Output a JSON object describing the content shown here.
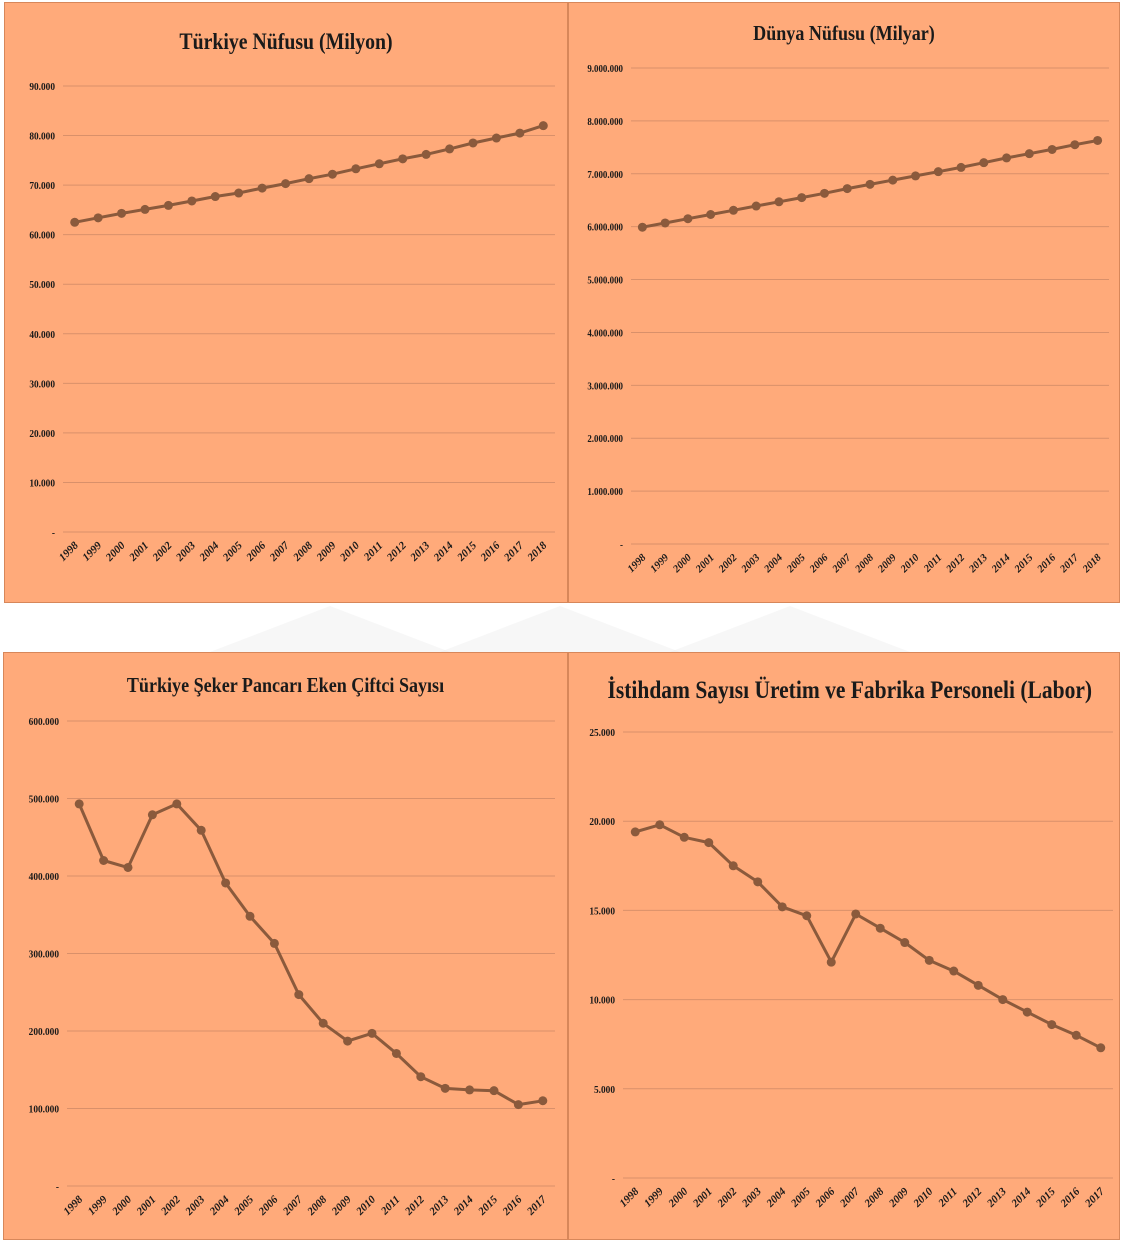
{
  "colors": {
    "panel": "#FFAA7A",
    "line": "#8B5A3C",
    "marker": "#8B5A3C",
    "grid": "#D9906A",
    "text": "#1a1a1a"
  },
  "chart_data": [
    {
      "type": "line",
      "title": "Türkiye Nüfusu (Milyon)",
      "categories": [
        "1998",
        "1999",
        "2000",
        "2001",
        "2002",
        "2003",
        "2004",
        "2005",
        "2006",
        "2007",
        "2008",
        "2009",
        "2010",
        "2011",
        "2012",
        "2013",
        "2014",
        "2015",
        "2016",
        "2017",
        "2018"
      ],
      "values": [
        62500,
        63400,
        64300,
        65100,
        65900,
        66800,
        67700,
        68400,
        69400,
        70300,
        71300,
        72200,
        73300,
        74300,
        75300,
        76200,
        77300,
        78500,
        79500,
        80500,
        82000
      ],
      "yticks": [
        0,
        10000,
        20000,
        30000,
        40000,
        50000,
        60000,
        70000,
        80000,
        90000
      ],
      "ytick_labels": [
        "-",
        "10.000",
        "20.000",
        "30.000",
        "40.000",
        "50.000",
        "60.000",
        "70.000",
        "80.000",
        "90.000"
      ],
      "ylim": [
        0,
        90000
      ]
    },
    {
      "type": "line",
      "title": "Dünya Nüfusu (Milyar)",
      "categories": [
        "1998",
        "1999",
        "2000",
        "2001",
        "2002",
        "2003",
        "2004",
        "2005",
        "2006",
        "2007",
        "2008",
        "2009",
        "2010",
        "2011",
        "2012",
        "2013",
        "2014",
        "2015",
        "2016",
        "2017",
        "2018"
      ],
      "values": [
        5990000,
        6070000,
        6150000,
        6230000,
        6310000,
        6390000,
        6470000,
        6550000,
        6630000,
        6720000,
        6800000,
        6880000,
        6960000,
        7040000,
        7120000,
        7210000,
        7300000,
        7380000,
        7460000,
        7550000,
        7630000
      ],
      "yticks": [
        0,
        1000000,
        2000000,
        3000000,
        4000000,
        5000000,
        6000000,
        7000000,
        8000000,
        9000000
      ],
      "ytick_labels": [
        "-",
        "1.000.000",
        "2.000.000",
        "3.000.000",
        "4.000.000",
        "5.000.000",
        "6.000.000",
        "7.000.000",
        "8.000.000",
        "9.000.000"
      ],
      "ylim": [
        0,
        9000000
      ]
    },
    {
      "type": "line",
      "title": "Türkiye  Şeker Pancarı Eken Çiftci Sayısı",
      "categories": [
        "1998",
        "1999",
        "2000",
        "2001",
        "2002",
        "2003",
        "2004",
        "2005",
        "2006",
        "2007",
        "2008",
        "2009",
        "2010",
        "2011",
        "2012",
        "2013",
        "2014",
        "2015",
        "2016",
        "2017"
      ],
      "values": [
        493000,
        420000,
        411000,
        479000,
        493000,
        459000,
        391000,
        348000,
        313000,
        247000,
        210000,
        187000,
        197000,
        171000,
        141000,
        126000,
        124000,
        123000,
        105000,
        110000
      ],
      "yticks": [
        0,
        100000,
        200000,
        300000,
        400000,
        500000,
        600000
      ],
      "ytick_labels": [
        "-",
        "100.000",
        "200.000",
        "300.000",
        "400.000",
        "500.000",
        "600.000"
      ],
      "ylim": [
        0,
        600000
      ]
    },
    {
      "type": "line",
      "title": "İstihdam Sayısı Üretim ve Fabrika Personeli (Labor)",
      "categories": [
        "1998",
        "1999",
        "2000",
        "2001",
        "2002",
        "2003",
        "2004",
        "2005",
        "2006",
        "2007",
        "2008",
        "2009",
        "2010",
        "2011",
        "2012",
        "2013",
        "2014",
        "2015",
        "2016",
        "2017"
      ],
      "values": [
        19400,
        19800,
        19100,
        18800,
        17500,
        16600,
        15200,
        14700,
        12100,
        14800,
        14000,
        13200,
        12200,
        11600,
        10800,
        10000,
        9300,
        8600,
        8000,
        7300
      ],
      "yticks": [
        0,
        5000,
        10000,
        15000,
        20000,
        25000
      ],
      "ytick_labels": [
        "-",
        "5.000",
        "10.000",
        "15.000",
        "20.000",
        "25.000"
      ],
      "ylim": [
        0,
        25000
      ]
    }
  ]
}
